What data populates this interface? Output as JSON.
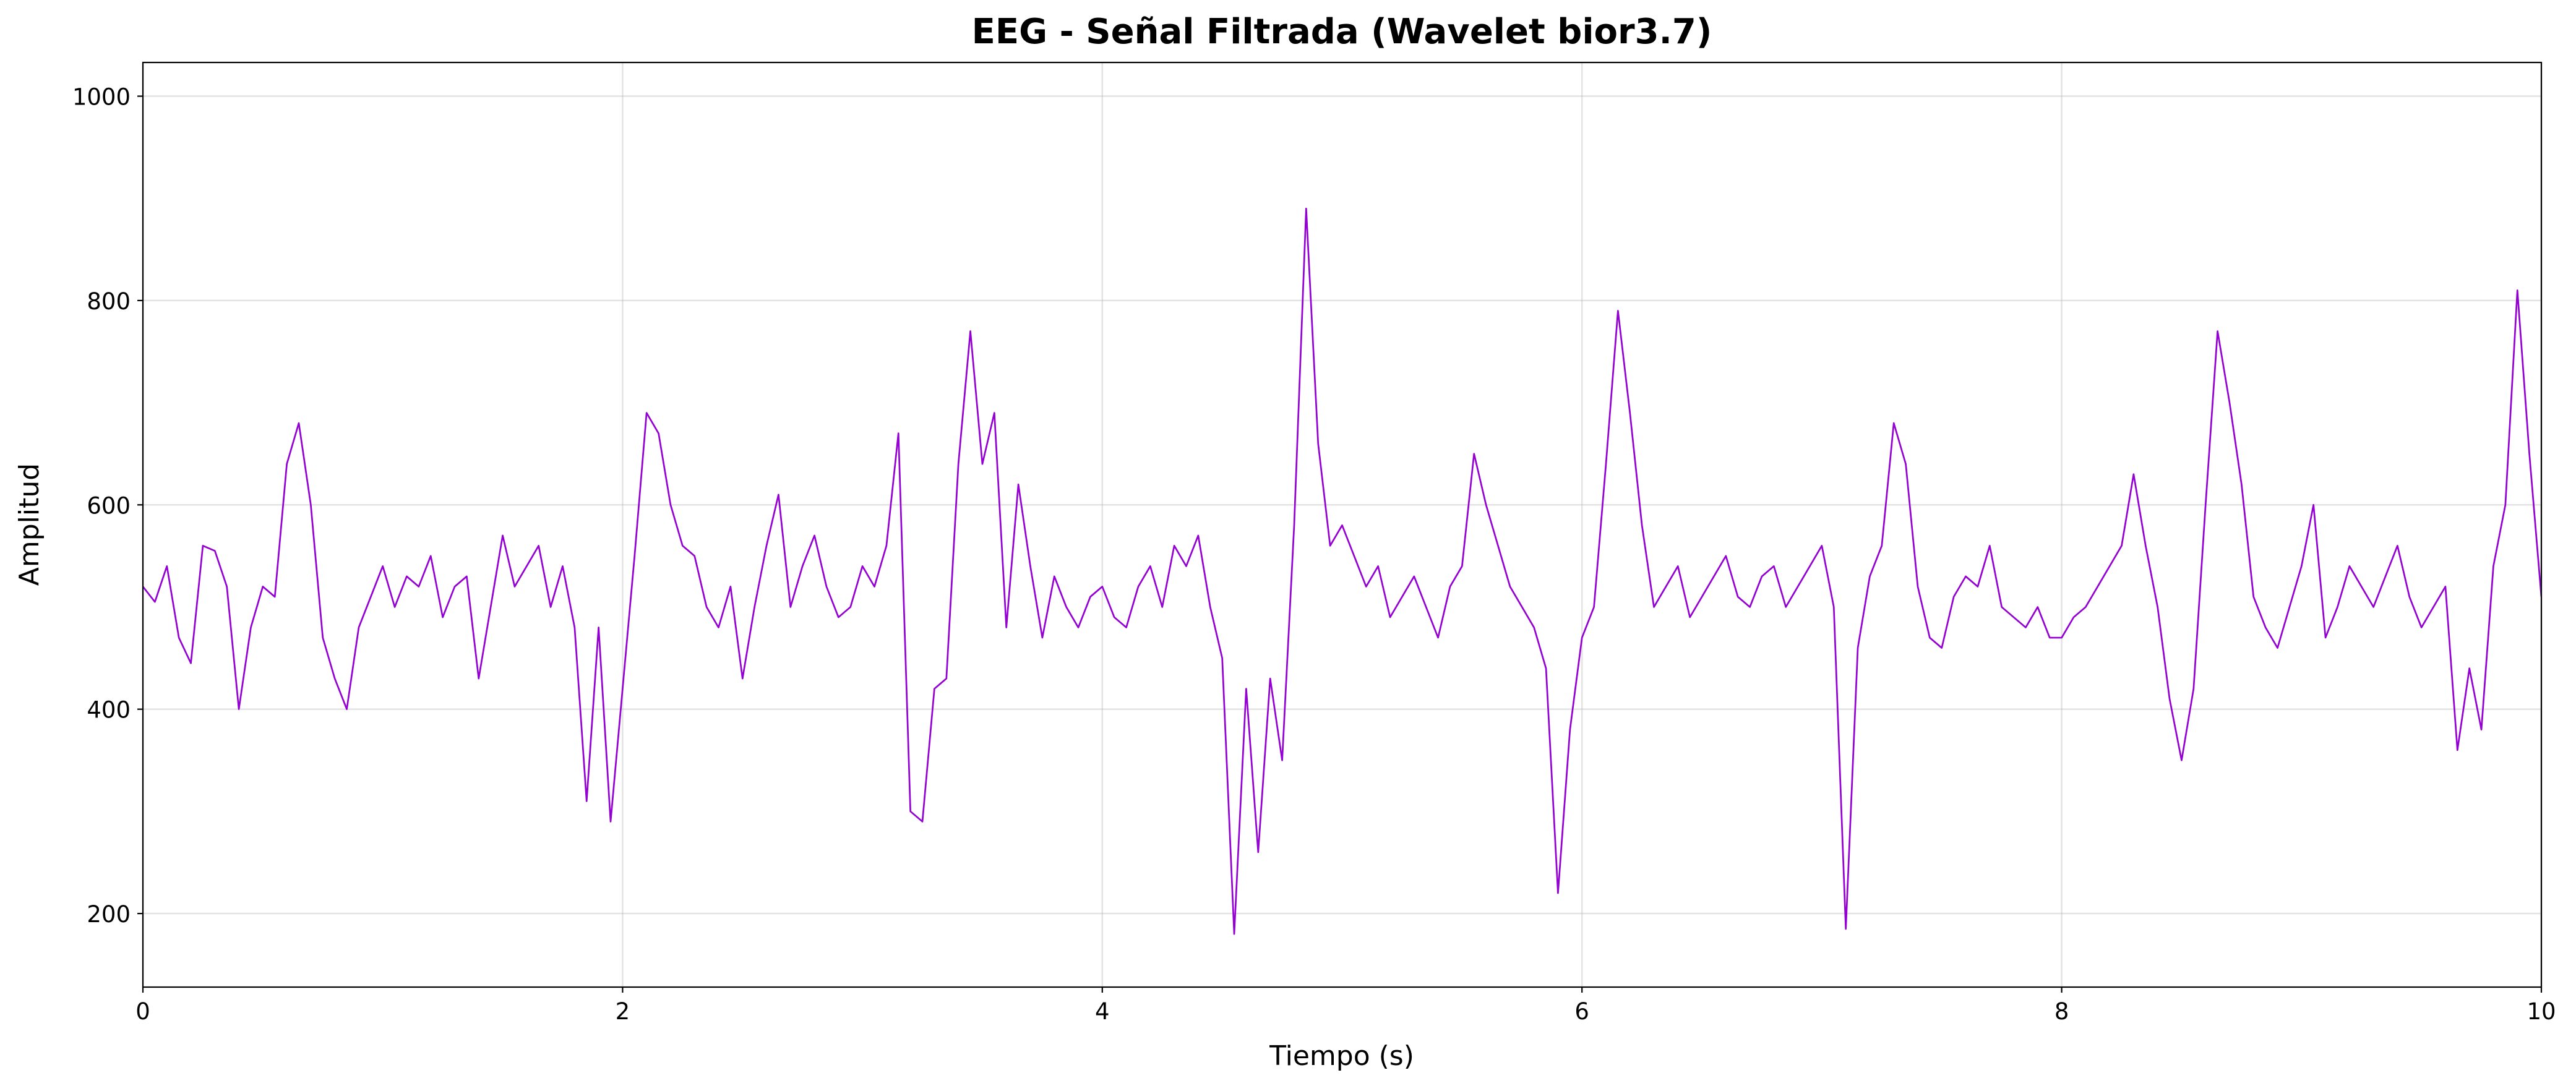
{
  "chart_data": {
    "type": "line",
    "title": "EEG - Señal Filtrada (Wavelet bior3.7)",
    "x_label": "Tiempo (s)",
    "y_label": "Amplitud",
    "xlim": [
      0,
      10
    ],
    "ylim": [
      128,
      1033
    ],
    "xticks": [
      0,
      2,
      4,
      6,
      8,
      10
    ],
    "yticks": [
      200,
      400,
      600,
      800,
      1000
    ],
    "grid": true,
    "x": [
      0,
      0.05,
      0.1,
      0.15,
      0.2,
      0.25,
      0.3,
      0.35,
      0.4,
      0.45,
      0.5,
      0.55,
      0.6,
      0.65,
      0.7,
      0.75,
      0.8,
      0.85,
      0.9,
      0.95,
      1.0,
      1.05,
      1.1,
      1.15,
      1.2,
      1.25,
      1.3,
      1.35,
      1.4,
      1.45,
      1.5,
      1.55,
      1.6,
      1.65,
      1.7,
      1.75,
      1.8,
      1.85,
      1.9,
      1.95,
      2.0,
      2.05,
      2.1,
      2.15,
      2.2,
      2.25,
      2.3,
      2.35,
      2.4,
      2.45,
      2.5,
      2.55,
      2.6,
      2.65,
      2.7,
      2.75,
      2.8,
      2.85,
      2.9,
      2.95,
      3.0,
      3.05,
      3.1,
      3.15,
      3.2,
      3.25,
      3.3,
      3.35,
      3.4,
      3.45,
      3.5,
      3.55,
      3.6,
      3.65,
      3.7,
      3.75,
      3.8,
      3.85,
      3.9,
      3.95,
      4.0,
      4.05,
      4.1,
      4.15,
      4.2,
      4.25,
      4.3,
      4.35,
      4.4,
      4.45,
      4.5,
      4.55,
      4.6,
      4.65,
      4.7,
      4.75,
      4.8,
      4.85,
      4.9,
      4.95,
      5.0,
      5.05,
      5.1,
      5.15,
      5.2,
      5.25,
      5.3,
      5.35,
      5.4,
      5.45,
      5.5,
      5.55,
      5.6,
      5.65,
      5.7,
      5.75,
      5.8,
      5.85,
      5.9,
      5.95,
      6.0,
      6.05,
      6.1,
      6.15,
      6.2,
      6.25,
      6.3,
      6.35,
      6.4,
      6.45,
      6.5,
      6.55,
      6.6,
      6.65,
      6.7,
      6.75,
      6.8,
      6.85,
      6.9,
      6.95,
      7.0,
      7.05,
      7.1,
      7.15,
      7.2,
      7.25,
      7.3,
      7.35,
      7.4,
      7.45,
      7.5,
      7.55,
      7.6,
      7.65,
      7.7,
      7.75,
      7.8,
      7.85,
      7.9,
      7.95,
      8.0,
      8.05,
      8.1,
      8.15,
      8.2,
      8.25,
      8.3,
      8.35,
      8.4,
      8.45,
      8.5,
      8.55,
      8.6,
      8.65,
      8.7,
      8.75,
      8.8,
      8.85,
      8.9,
      8.95,
      9.0,
      9.05,
      9.1,
      9.15,
      9.2,
      9.25,
      9.3,
      9.35,
      9.4,
      9.45,
      9.5,
      9.55,
      9.6,
      9.65,
      9.7,
      9.75,
      9.8,
      9.85,
      9.9,
      9.95,
      10
    ],
    "series": [
      {
        "color": "#9400d3",
        "values": [
          520,
          505,
          540,
          470,
          445,
          560,
          555,
          520,
          400,
          480,
          520,
          510,
          640,
          680,
          600,
          470,
          430,
          400,
          480,
          510,
          540,
          500,
          530,
          520,
          550,
          490,
          520,
          530,
          430,
          500,
          570,
          520,
          540,
          560,
          500,
          540,
          480,
          310,
          480,
          290,
          420,
          550,
          690,
          670,
          600,
          560,
          550,
          500,
          480,
          520,
          430,
          500,
          560,
          610,
          500,
          540,
          570,
          520,
          490,
          500,
          540,
          520,
          560,
          670,
          300,
          290,
          420,
          430,
          640,
          770,
          640,
          690,
          480,
          620,
          540,
          470,
          530,
          500,
          480,
          510,
          520,
          490,
          480,
          520,
          540,
          500,
          560,
          540,
          570,
          500,
          450,
          180,
          420,
          260,
          430,
          350,
          580,
          890,
          660,
          560,
          580,
          550,
          520,
          540,
          490,
          510,
          530,
          500,
          470,
          520,
          540,
          650,
          600,
          560,
          520,
          500,
          480,
          440,
          220,
          380,
          470,
          500,
          640,
          790,
          690,
          580,
          500,
          520,
          540,
          490,
          510,
          530,
          550,
          510,
          500,
          530,
          540,
          500,
          520,
          540,
          560,
          500,
          185,
          460,
          530,
          560,
          680,
          640,
          520,
          470,
          460,
          510,
          530,
          520,
          560,
          500,
          490,
          480,
          500,
          470,
          470,
          490,
          500,
          520,
          540,
          560,
          630,
          560,
          500,
          410,
          350,
          420,
          600,
          770,
          700,
          620,
          510,
          480,
          460,
          500,
          540,
          600,
          470,
          500,
          540,
          520,
          500,
          530,
          560,
          510,
          480,
          500,
          520,
          360,
          440,
          380,
          540,
          600,
          810,
          650,
          510
        ]
      }
    ]
  }
}
